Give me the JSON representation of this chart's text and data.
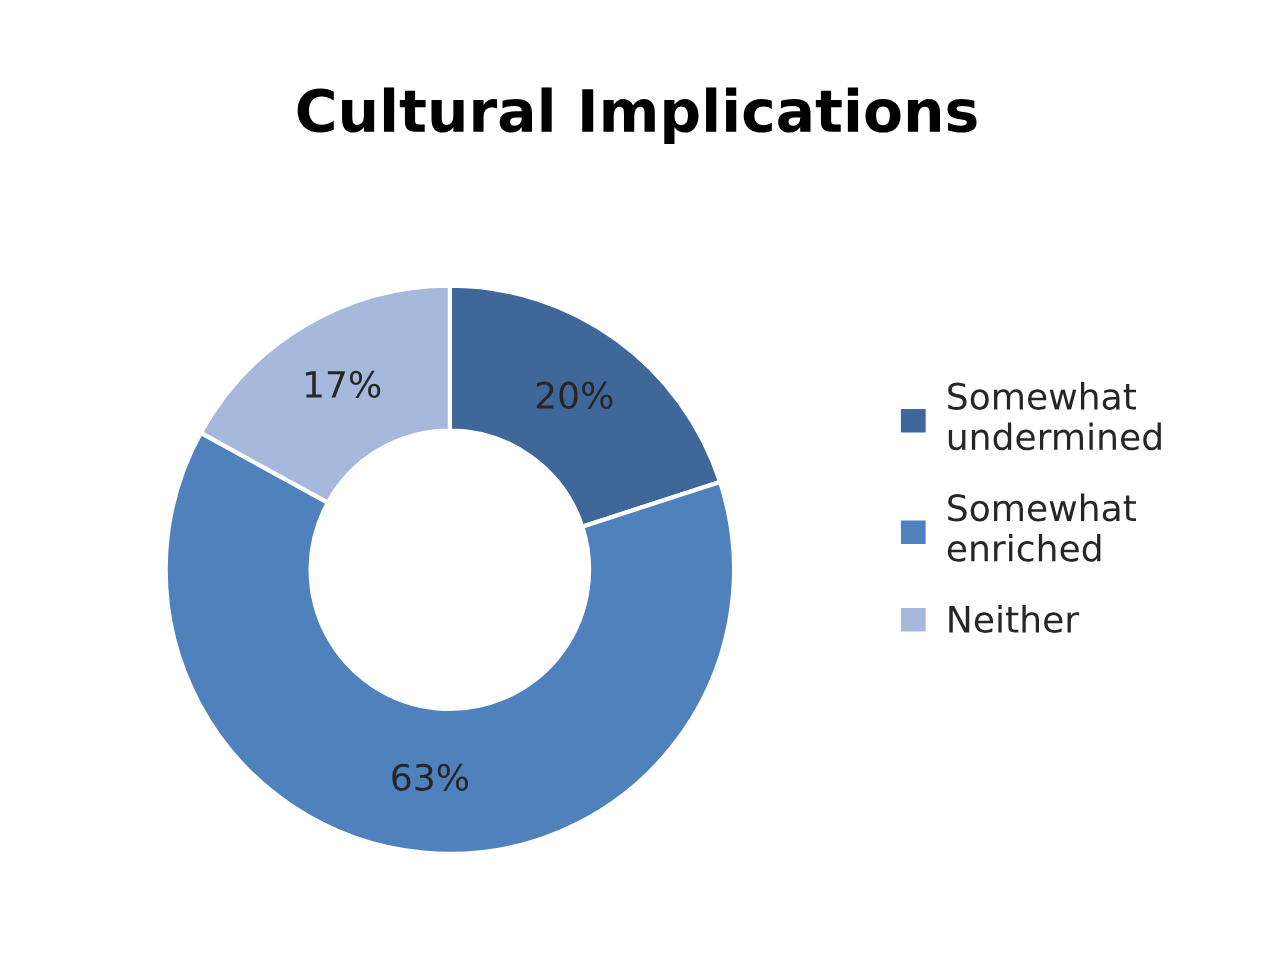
{
  "chart_data": {
    "type": "donut",
    "title": "Cultural Implications",
    "categories": [
      "Somewhat undermined",
      "Somewhat enriched",
      "Neither"
    ],
    "values": [
      20,
      63,
      17
    ],
    "colors": [
      "#3f679a",
      "#4f81bd",
      "#a6b8db"
    ],
    "value_labels": [
      "20%",
      "63%",
      "17%"
    ],
    "legend": "right"
  }
}
